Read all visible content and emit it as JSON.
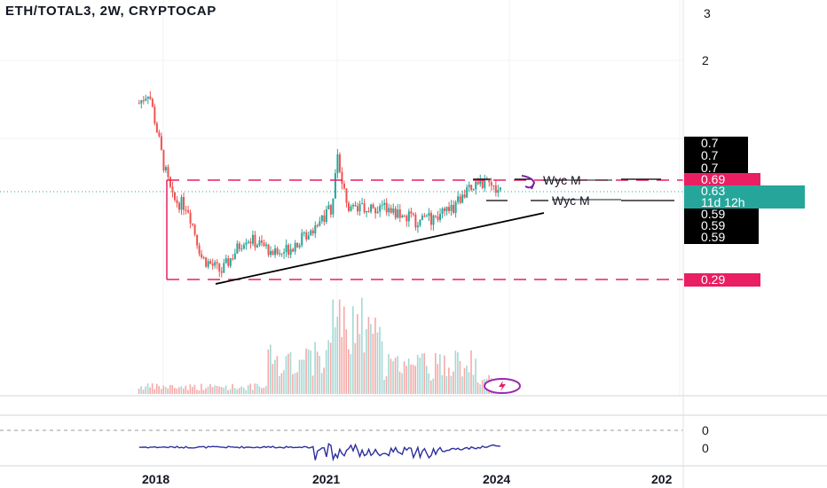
{
  "title": "ETH/TOTAL3, 2W, CRYPTOCAP",
  "colors": {
    "up": "#26a69a",
    "down": "#ef5350",
    "level": "#e91e63",
    "osc": "#2c2f9c"
  },
  "price_axis": {
    "ticks": [
      "3",
      "2"
    ],
    "osc_ticks": [
      "0",
      "0"
    ]
  },
  "price_tags": {
    "dark": [
      "0.7",
      "0.7",
      "0.7"
    ],
    "resistance": "0.69",
    "current": "0.63",
    "countdown": "11d 12h",
    "dark_lower": [
      "0.59",
      "0.59",
      "0.59"
    ],
    "support": "0.29"
  },
  "annotations": {
    "wyc_upper": "Wyc M",
    "wyc_lower": "Wyc M"
  },
  "time_axis": [
    "2018",
    "2021",
    "2024",
    "202"
  ],
  "chart_data": {
    "type": "candlestick",
    "title": "ETH/TOTAL3, 2W, CRYPTOCAP",
    "x_range": [
      "2017-07",
      "2026-12"
    ],
    "y_scale": "log",
    "horizontal_levels": [
      0.69,
      0.29
    ],
    "last_price": 0.63,
    "approx_close_path": [
      {
        "date": "2017-08",
        "close": 1.35
      },
      {
        "date": "2017-10",
        "close": 1.5
      },
      {
        "date": "2017-12",
        "close": 1.0
      },
      {
        "date": "2018-01",
        "close": 0.8
      },
      {
        "date": "2018-03",
        "close": 0.58
      },
      {
        "date": "2018-06",
        "close": 0.55
      },
      {
        "date": "2018-09",
        "close": 0.35
      },
      {
        "date": "2019-01",
        "close": 0.31
      },
      {
        "date": "2019-06",
        "close": 0.42
      },
      {
        "date": "2020-01",
        "close": 0.36
      },
      {
        "date": "2020-06",
        "close": 0.42
      },
      {
        "date": "2020-12",
        "close": 0.55
      },
      {
        "date": "2021-01",
        "close": 0.85
      },
      {
        "date": "2021-03",
        "close": 0.55
      },
      {
        "date": "2021-09",
        "close": 0.55
      },
      {
        "date": "2022-06",
        "close": 0.48
      },
      {
        "date": "2022-12",
        "close": 0.52
      },
      {
        "date": "2023-06",
        "close": 0.69
      },
      {
        "date": "2023-11",
        "close": 0.62
      }
    ]
  }
}
